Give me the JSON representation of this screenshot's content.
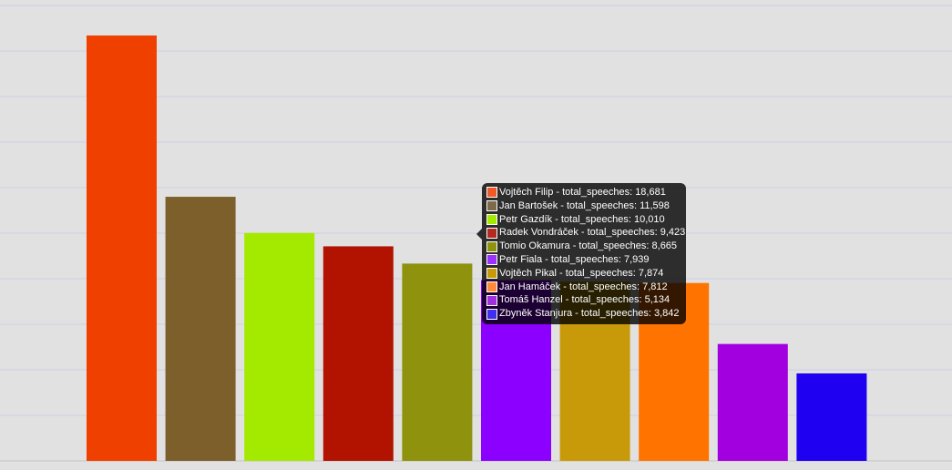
{
  "chart_data": {
    "type": "bar",
    "categories": [
      "Vojtěch Filip",
      "Jan Bartošek",
      "Petr Gazdík",
      "Radek Vondráček",
      "Tomio Okamura",
      "Petr Fiala",
      "Vojtěch Pikal",
      "Jan Hamáček",
      "Tomáš Hanzel",
      "Zbyněk Stanjura"
    ],
    "series": [
      {
        "name": "total_speeches",
        "values": [
          18681,
          11598,
          10010,
          9423,
          8665,
          7939,
          7874,
          7812,
          5134,
          3842
        ]
      }
    ],
    "colors": [
      "#f04000",
      "#7d5f2c",
      "#a4e900",
      "#b21300",
      "#8e920c",
      "#8b00ff",
      "#c89a09",
      "#ff7300",
      "#a300e0",
      "#1f00f0"
    ],
    "ylim": [
      0,
      20000
    ],
    "grid": true,
    "legend": "none"
  },
  "tooltip": {
    "rows": [
      "Vojtěch Filip - total_speeches: 18,681",
      "Jan Bartošek - total_speeches: 11,598",
      "Petr Gazdík - total_speeches: 10,010",
      "Radek Vondráček - total_speeches: 9,423",
      "Tomio Okamura - total_speeches: 8,665",
      "Petr Fiala - total_speeches: 7,939",
      "Vojtěch Pikal - total_speeches: 7,874",
      "Jan Hamáček - total_speeches: 7,812",
      "Tomáš Hanzel - total_speeches: 5,134",
      "Zbyněk Stanjura - total_speeches: 3,842"
    ],
    "swatch_colors": [
      "#f05a28",
      "#7d6a4a",
      "#a4e900",
      "#b22a20",
      "#8e920c",
      "#9b30ff",
      "#c89a09",
      "#ff8a3a",
      "#a32ee0",
      "#3f30f0"
    ]
  }
}
